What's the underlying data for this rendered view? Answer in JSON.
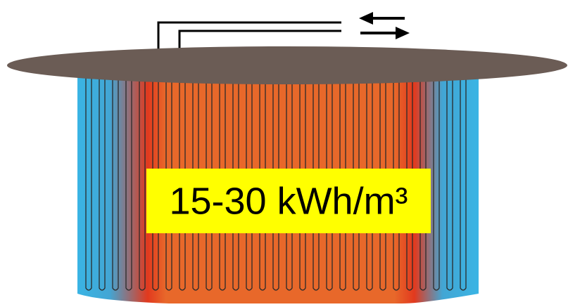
{
  "label": {
    "text": "15-30 kWh/m³"
  }
}
